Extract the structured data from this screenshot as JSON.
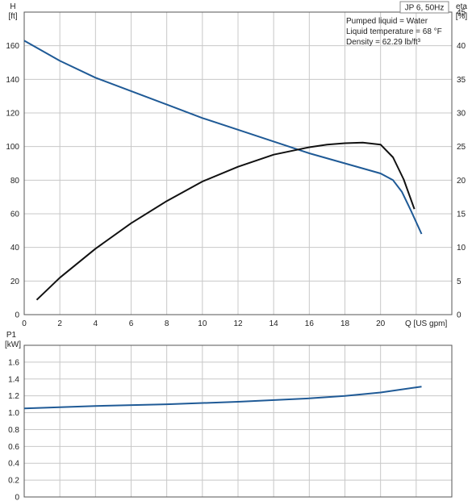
{
  "chart_data": [
    {
      "type": "line",
      "title": "JP 6, 50Hz",
      "info_lines": [
        "Pumped liquid = Water",
        "Liquid temperature = 68 °F",
        "Density = 62.29 lb/ft³"
      ],
      "xlabel": "Q [US gpm]",
      "ylabel_left": [
        "H",
        "[ft]"
      ],
      "ylabel_right": [
        "eta",
        "[%]"
      ],
      "xlim": [
        0,
        24
      ],
      "ylim_left": [
        0,
        180
      ],
      "ylim_right": [
        0,
        45
      ],
      "x_ticks": [
        0,
        2,
        4,
        6,
        8,
        10,
        12,
        14,
        16,
        18,
        20
      ],
      "y_ticks_left": [
        0,
        20,
        40,
        60,
        80,
        100,
        120,
        140,
        160
      ],
      "y_ticks_right": [
        0,
        5,
        10,
        15,
        20,
        25,
        30,
        35,
        40,
        45
      ],
      "grid": true,
      "series": [
        {
          "name": "H",
          "axis": "left",
          "color": "#1f5a96",
          "x": [
            0,
            2,
            4,
            6,
            8,
            10,
            12,
            14,
            16,
            18,
            20,
            20.7,
            21.2,
            21.7,
            22.3
          ],
          "y": [
            163,
            151,
            141,
            133,
            125,
            117,
            110,
            103,
            96,
            90,
            84,
            80,
            73,
            62,
            48
          ]
        },
        {
          "name": "eta",
          "axis": "right",
          "color": "#111111",
          "x": [
            0.7,
            2,
            4,
            6,
            8,
            10,
            12,
            14,
            16,
            17,
            18,
            19,
            20,
            20.7,
            21.3,
            21.9
          ],
          "y": [
            2.2,
            5.5,
            9.8,
            13.6,
            16.9,
            19.8,
            22.0,
            23.8,
            24.9,
            25.3,
            25.5,
            25.6,
            25.3,
            23.4,
            20.1,
            15.7
          ]
        }
      ]
    },
    {
      "type": "line",
      "xlim": [
        0,
        24
      ],
      "ylabel": [
        "P1",
        "[kW]"
      ],
      "ylim": [
        0,
        1.8
      ],
      "y_ticks": [
        0,
        0.2,
        0.4,
        0.6,
        0.8,
        1.0,
        1.2,
        1.4,
        1.6
      ],
      "y_tick_labels": [
        "0",
        "0.2",
        "0.4",
        "0.6",
        "0.8",
        "1.0",
        "1.2",
        "1.4",
        "1.6"
      ],
      "grid": true,
      "series": [
        {
          "name": "P1",
          "color": "#1f5a96",
          "x": [
            0,
            4,
            8,
            12,
            16,
            18,
            20,
            22.3
          ],
          "y": [
            1.05,
            1.08,
            1.1,
            1.13,
            1.17,
            1.2,
            1.24,
            1.31
          ]
        }
      ]
    }
  ]
}
